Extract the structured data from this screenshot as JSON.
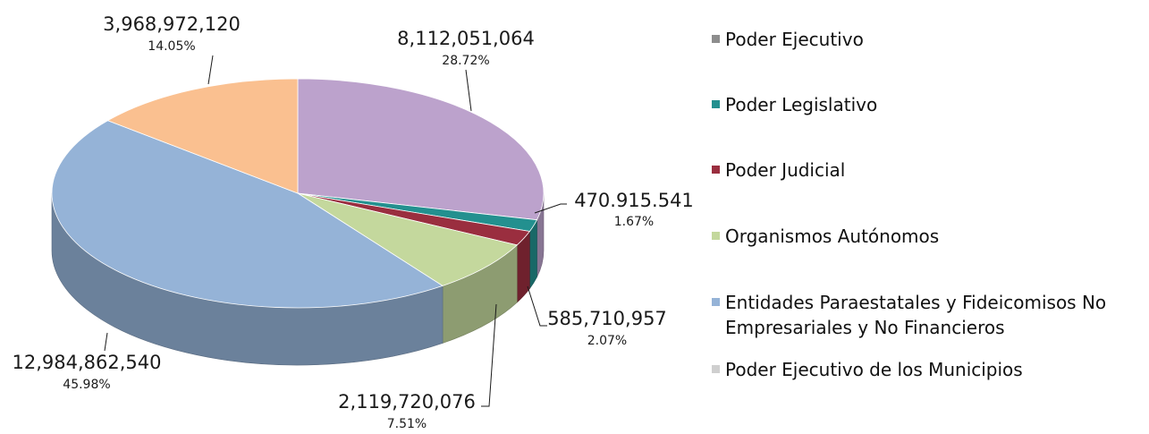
{
  "chart_data": {
    "type": "pie",
    "title": "",
    "style": "3d-exploded-none",
    "legend_position": "right",
    "series": [
      {
        "name": "Poder Ejecutivo",
        "value": 8112051064,
        "label": "8,112,051,064",
        "percent_label": "28.72%",
        "color": "#bca2cc"
      },
      {
        "name": "Poder Legislativo",
        "value": 470915541,
        "label": "470.915.541",
        "percent_label": "1.67%",
        "color": "#23908f"
      },
      {
        "name": "Poder Judicial",
        "value": 585710957,
        "label": "585,710,957",
        "percent_label": "2.07%",
        "color": "#9a2e3f"
      },
      {
        "name": "Organismos Autónomos",
        "value": 2119720076,
        "label": "2,119,720,076",
        "percent_label": "7.51%",
        "color": "#c4d89d"
      },
      {
        "name": "Entidades Paraestatales y Fideicomisos No Empresariales y No Financieros",
        "legend_lines": [
          "Entidades Paraestatales y Fideicomisos No",
          "Empresariales y No Financieros"
        ],
        "value": 12984862540,
        "label": "12,984,862,540",
        "percent_label": "45.98%",
        "color": "#95b3d7"
      },
      {
        "name": "Poder Ejecutivo de los Municipios",
        "value": 3968972120,
        "label": "3,968,972,120",
        "percent_label": "14.05%",
        "color": "#fac090"
      }
    ],
    "legend_colors": [
      "#8d8d8d",
      "#23908f",
      "#9a2e3f",
      "#c4d89d",
      "#95b3d7",
      "#cfcfcf"
    ]
  }
}
